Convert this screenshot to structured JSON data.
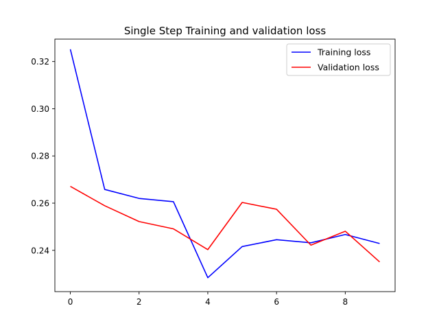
{
  "chart_data": {
    "type": "line",
    "title": "Single Step Training and validation loss",
    "xlabel": "",
    "ylabel": "",
    "x": [
      0,
      1,
      2,
      3,
      4,
      5,
      6,
      7,
      8,
      9
    ],
    "xlim": [
      -0.45,
      9.45
    ],
    "ylim": [
      0.2225,
      0.3295
    ],
    "xticks": [
      0,
      2,
      4,
      6,
      8
    ],
    "xtick_labels": [
      "0",
      "2",
      "4",
      "6",
      "8"
    ],
    "yticks": [
      0.24,
      0.26,
      0.28,
      0.3,
      0.32
    ],
    "ytick_labels": [
      "0.24",
      "0.26",
      "0.28",
      "0.30",
      "0.32"
    ],
    "grid": false,
    "legend_position": "top-right",
    "series": [
      {
        "name": "Training loss",
        "color": "#0000ff",
        "values": [
          0.3252,
          0.2658,
          0.262,
          0.2606,
          0.2284,
          0.2416,
          0.2445,
          0.2432,
          0.2467,
          0.2429
        ]
      },
      {
        "name": "Validation loss",
        "color": "#ff0000",
        "values": [
          0.2671,
          0.2589,
          0.2522,
          0.2491,
          0.2403,
          0.2603,
          0.2574,
          0.2422,
          0.2481,
          0.2351
        ]
      }
    ]
  }
}
